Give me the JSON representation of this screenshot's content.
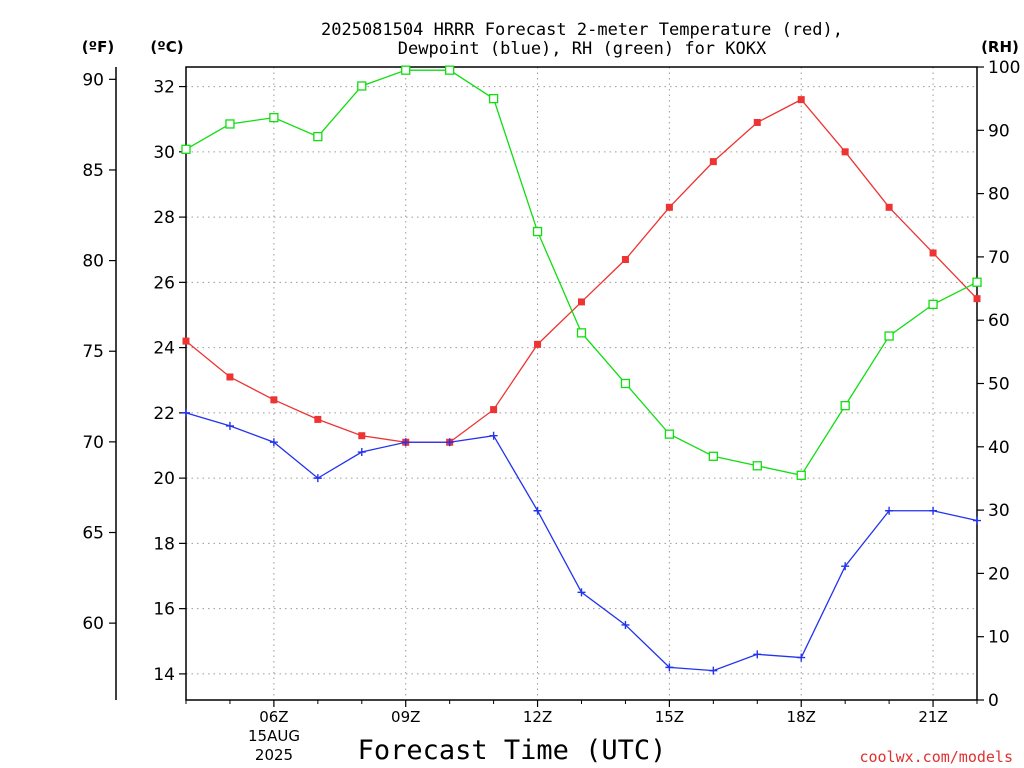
{
  "chart_data": {
    "type": "line",
    "title_line1": "2025081504 HRRR Forecast 2-meter Temperature (red),",
    "title_line2": "Dewpoint (blue), RH (green) for KOKX",
    "unit_labels": {
      "fahrenheit": "(ºF)",
      "celsius": "(ºC)",
      "rh": "(RH)"
    },
    "xlabel": "Forecast Time (UTC)",
    "x_ticks": [
      "06Z",
      "09Z",
      "12Z",
      "15Z",
      "18Z",
      "21Z"
    ],
    "x_date_line1": "15AUG",
    "x_date_line2": "2025",
    "credit": "coolwx.com/models",
    "x_hours": [
      4,
      5,
      6,
      7,
      8,
      9,
      10,
      11,
      12,
      13,
      14,
      15,
      16,
      17,
      18,
      19,
      20,
      21,
      22
    ],
    "xlim": [
      4,
      22
    ],
    "celsius_axis": {
      "ylim": [
        13.2,
        32.6
      ],
      "ticks": [
        14,
        16,
        18,
        20,
        22,
        24,
        26,
        28,
        30,
        32
      ]
    },
    "fahrenheit_axis": {
      "ticks": [
        60,
        65,
        70,
        75,
        80,
        85,
        90
      ]
    },
    "rh_axis": {
      "ylim": [
        0,
        100
      ],
      "ticks": [
        0,
        10,
        20,
        30,
        40,
        50,
        60,
        70,
        80,
        90,
        100
      ]
    },
    "grid": true,
    "series": [
      {
        "axis": "celsius",
        "color": "#ee3333",
        "marker": "filled-square",
        "values": [
          24.2,
          23.1,
          22.4,
          21.8,
          21.3,
          21.1,
          21.1,
          22.1,
          24.1,
          25.4,
          26.7,
          28.3,
          29.7,
          30.9,
          31.6,
          30.0,
          28.3,
          26.9,
          25.5
        ]
      },
      {
        "axis": "celsius",
        "color": "#2233ee",
        "marker": "plus",
        "values": [
          22.0,
          21.6,
          21.1,
          20.0,
          20.8,
          21.1,
          21.1,
          21.3,
          19.0,
          16.5,
          15.5,
          14.2,
          14.1,
          14.6,
          14.5,
          17.3,
          19.0,
          19.0,
          18.7
        ]
      },
      {
        "axis": "rh",
        "color": "#11dd11",
        "marker": "open-square",
        "values": [
          87,
          91,
          92,
          89,
          97,
          99.5,
          99.5,
          95,
          74,
          58,
          50,
          42,
          38.5,
          37,
          35.5,
          46.5,
          57.5,
          62.5,
          66
        ]
      }
    ]
  }
}
